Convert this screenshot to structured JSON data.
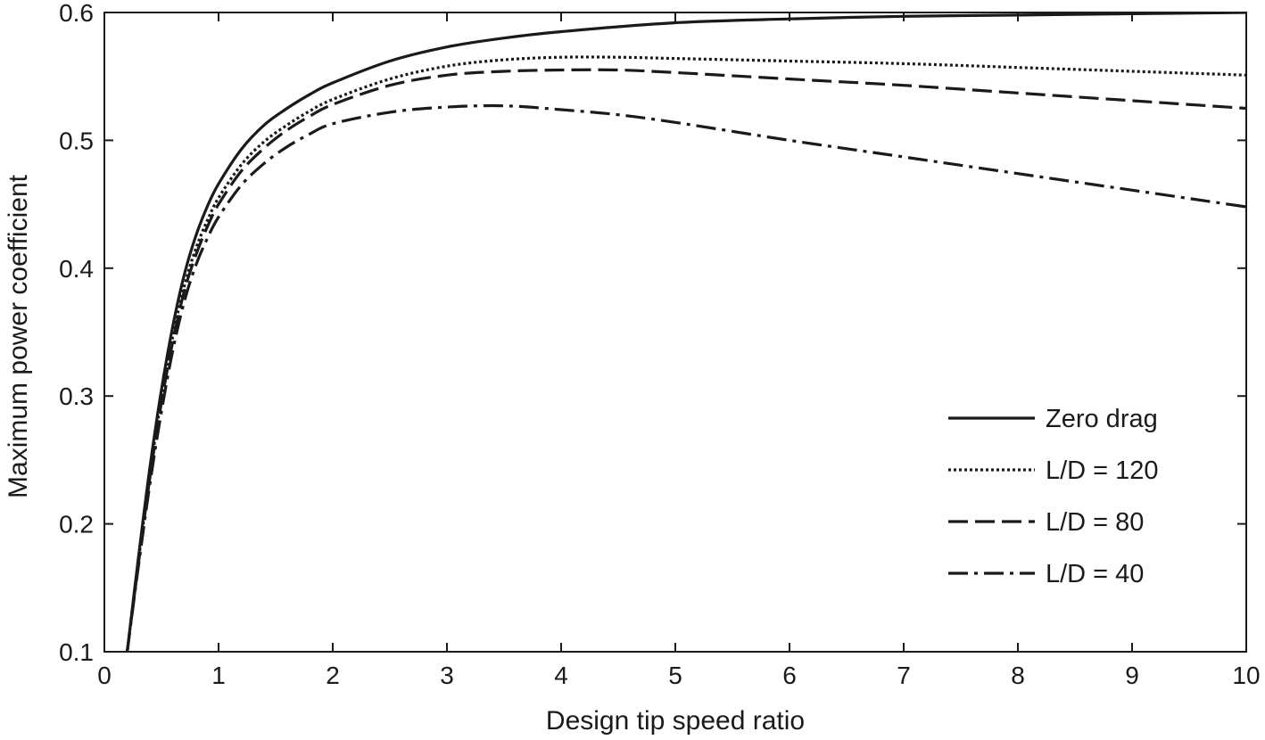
{
  "chart_data": {
    "type": "line",
    "title": "",
    "xlabel": "Design tip speed ratio",
    "ylabel": "Maximum power coefficient",
    "xlim": [
      0,
      10
    ],
    "ylim": [
      0.1,
      0.6
    ],
    "xticks": [
      0,
      1,
      2,
      3,
      4,
      5,
      6,
      7,
      8,
      9,
      10
    ],
    "yticks": [
      0.1,
      0.2,
      0.3,
      0.4,
      0.5,
      0.6
    ],
    "xtick_labels": [
      "0",
      "1",
      "2",
      "3",
      "4",
      "5",
      "6",
      "7",
      "8",
      "9",
      "10"
    ],
    "ytick_labels": [
      "0.1",
      "0.2",
      "0.3",
      "0.4",
      "0.5",
      "0.6"
    ],
    "grid": false,
    "legend_position": "lower-right",
    "series": [
      {
        "name": "Zero drag",
        "line_style": "solid",
        "x": [
          0.2,
          0.3,
          0.4,
          0.5,
          0.6,
          0.7,
          0.8,
          0.9,
          1.0,
          1.2,
          1.4,
          1.6,
          1.8,
          2.0,
          2.5,
          3.0,
          3.5,
          4.0,
          5.0,
          6.0,
          7.0,
          8.0,
          9.0,
          10.0
        ],
        "y": [
          0.1,
          0.175,
          0.245,
          0.305,
          0.355,
          0.395,
          0.425,
          0.448,
          0.466,
          0.493,
          0.512,
          0.525,
          0.536,
          0.545,
          0.562,
          0.573,
          0.58,
          0.585,
          0.592,
          0.595,
          0.597,
          0.598,
          0.599,
          0.6
        ]
      },
      {
        "name": "L/D = 120",
        "line_style": "dotted",
        "x": [
          0.2,
          0.3,
          0.4,
          0.5,
          0.6,
          0.7,
          0.8,
          0.9,
          1.0,
          1.2,
          1.4,
          1.6,
          1.8,
          2.0,
          2.5,
          3.0,
          3.5,
          4.0,
          4.5,
          5.0,
          6.0,
          7.0,
          8.0,
          9.0,
          10.0
        ],
        "y": [
          0.1,
          0.172,
          0.24,
          0.298,
          0.347,
          0.386,
          0.415,
          0.437,
          0.455,
          0.481,
          0.499,
          0.512,
          0.523,
          0.532,
          0.548,
          0.558,
          0.563,
          0.565,
          0.565,
          0.564,
          0.562,
          0.56,
          0.557,
          0.554,
          0.551
        ]
      },
      {
        "name": "L/D = 80",
        "line_style": "dashed",
        "x": [
          0.2,
          0.3,
          0.4,
          0.5,
          0.6,
          0.7,
          0.8,
          0.9,
          1.0,
          1.2,
          1.4,
          1.6,
          1.8,
          2.0,
          2.5,
          3.0,
          3.5,
          4.0,
          4.5,
          5.0,
          6.0,
          7.0,
          8.0,
          9.0,
          10.0
        ],
        "y": [
          0.1,
          0.17,
          0.237,
          0.295,
          0.343,
          0.382,
          0.41,
          0.432,
          0.45,
          0.476,
          0.494,
          0.508,
          0.519,
          0.528,
          0.543,
          0.551,
          0.554,
          0.555,
          0.555,
          0.553,
          0.548,
          0.543,
          0.537,
          0.531,
          0.525
        ]
      },
      {
        "name": "L/D = 40",
        "line_style": "dash-dot",
        "x": [
          0.2,
          0.3,
          0.4,
          0.5,
          0.6,
          0.7,
          0.8,
          0.9,
          1.0,
          1.2,
          1.4,
          1.6,
          1.8,
          2.0,
          2.5,
          3.0,
          3.5,
          4.0,
          4.5,
          5.0,
          6.0,
          7.0,
          8.0,
          9.0,
          10.0
        ],
        "y": [
          0.1,
          0.168,
          0.232,
          0.288,
          0.336,
          0.374,
          0.402,
          0.423,
          0.44,
          0.465,
          0.482,
          0.495,
          0.505,
          0.513,
          0.522,
          0.526,
          0.527,
          0.524,
          0.52,
          0.514,
          0.5,
          0.487,
          0.474,
          0.461,
          0.448
        ]
      }
    ]
  }
}
